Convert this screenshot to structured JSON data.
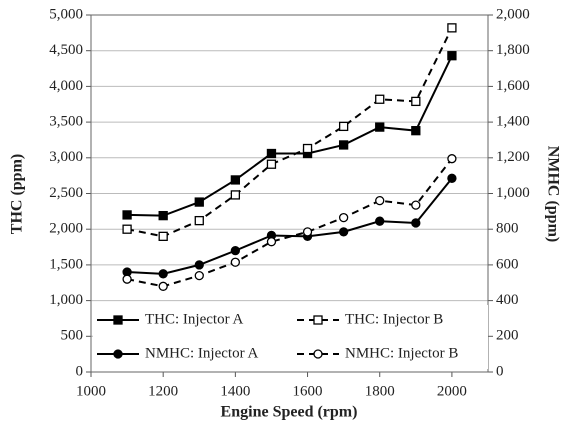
{
  "chart_data": {
    "type": "line",
    "xlabel": "Engine Speed (rpm)",
    "ylabel": "THC (ppm)",
    "y2label": "NMHC (ppm)",
    "x": [
      1100,
      1200,
      1300,
      1400,
      1500,
      1600,
      1700,
      1800,
      1900,
      2000
    ],
    "xlim": [
      1000,
      2100
    ],
    "xticks": [
      1000,
      1200,
      1400,
      1600,
      1800,
      2000
    ],
    "ylim": [
      0,
      5000
    ],
    "yticks": [
      0,
      500,
      {
        "value": 1000,
        "label": "1,000"
      },
      {
        "value": 1500,
        "label": "1,500"
      },
      {
        "value": 2000,
        "label": "2,000"
      },
      {
        "value": 2500,
        "label": "2,500"
      },
      {
        "value": 3000,
        "label": "3,000"
      },
      {
        "value": 3500,
        "label": "3,500"
      },
      {
        "value": 4000,
        "label": "4,000"
      },
      {
        "value": 4500,
        "label": "4,500"
      },
      {
        "value": 5000,
        "label": "5,000"
      }
    ],
    "y2lim": [
      0,
      2000
    ],
    "y2ticks": [
      0,
      200,
      400,
      600,
      800,
      {
        "value": 1000,
        "label": "1,000"
      },
      {
        "value": 1200,
        "label": "1,200"
      },
      {
        "value": 1400,
        "label": "1,400"
      },
      {
        "value": 1600,
        "label": "1,600"
      },
      {
        "value": 1800,
        "label": "1,800"
      },
      {
        "value": 2000,
        "label": "2,000"
      }
    ],
    "grid": true,
    "legend": "lower left",
    "series": [
      {
        "name": "THC: Injector A",
        "color": "#000000",
        "marker": "square",
        "marker_fill": "#000000",
        "line_style": "solid",
        "values": [
          2200,
          2190,
          2380,
          2690,
          3060,
          3060,
          3180,
          3430,
          3380,
          4430
        ]
      },
      {
        "name": "THC: Injector B",
        "color": "#000000",
        "marker": "square",
        "marker_fill": "#ffffff",
        "line_style": "dashed",
        "values": [
          2000,
          1900,
          2120,
          2480,
          2910,
          3130,
          3440,
          3820,
          3790,
          4820
        ]
      },
      {
        "name": "NMHC: Injector A",
        "color": "#000000",
        "marker": "circle",
        "marker_fill": "#000000",
        "line_style": "solid",
        "axis": "y2",
        "values": [
          560,
          550,
          600,
          680,
          765,
          760,
          785,
          845,
          835,
          1085
        ]
      },
      {
        "name": "NMHC: Injector B",
        "color": "#000000",
        "marker": "circle",
        "marker_fill": "#ffffff",
        "line_style": "dashed",
        "axis": "y2",
        "values": [
          520,
          480,
          540,
          615,
          730,
          785,
          865,
          960,
          935,
          1195
        ]
      }
    ]
  }
}
